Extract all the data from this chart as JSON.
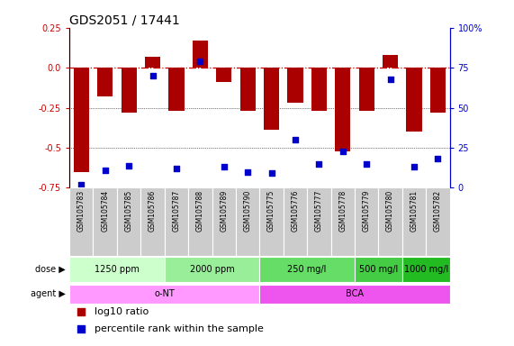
{
  "title": "GDS2051 / 17441",
  "samples": [
    "GSM105783",
    "GSM105784",
    "GSM105785",
    "GSM105786",
    "GSM105787",
    "GSM105788",
    "GSM105789",
    "GSM105790",
    "GSM105775",
    "GSM105776",
    "GSM105777",
    "GSM105778",
    "GSM105779",
    "GSM105780",
    "GSM105781",
    "GSM105782"
  ],
  "log10_ratio": [
    -0.65,
    -0.18,
    -0.28,
    0.07,
    -0.27,
    0.17,
    -0.09,
    -0.27,
    -0.39,
    -0.22,
    -0.27,
    -0.52,
    -0.27,
    0.08,
    -0.4,
    -0.28
  ],
  "percentile": [
    2,
    11,
    14,
    70,
    12,
    79,
    13,
    10,
    9,
    30,
    15,
    23,
    15,
    68,
    13,
    18
  ],
  "dose_groups": [
    {
      "label": "1250 ppm",
      "start": 0,
      "end": 4,
      "color": "#ccffcc"
    },
    {
      "label": "2000 ppm",
      "start": 4,
      "end": 8,
      "color": "#99ee99"
    },
    {
      "label": "250 mg/l",
      "start": 8,
      "end": 12,
      "color": "#66dd66"
    },
    {
      "label": "500 mg/l",
      "start": 12,
      "end": 14,
      "color": "#44cc44"
    },
    {
      "label": "1000 mg/l",
      "start": 14,
      "end": 16,
      "color": "#22bb22"
    }
  ],
  "agent_groups": [
    {
      "label": "o-NT",
      "start": 0,
      "end": 8,
      "color": "#ff99ff"
    },
    {
      "label": "BCA",
      "start": 8,
      "end": 16,
      "color": "#ee55ee"
    }
  ],
  "bar_color": "#aa0000",
  "dot_color": "#0000cc",
  "sample_bg_color": "#cccccc",
  "ref_line_color": "#cc0000",
  "background_color": "#ffffff",
  "ylim_left": [
    -0.75,
    0.25
  ],
  "ylim_right": [
    0,
    100
  ],
  "yticks_left": [
    -0.75,
    -0.5,
    -0.25,
    0.0,
    0.25
  ],
  "yticks_right": [
    0,
    25,
    50,
    75,
    100
  ],
  "title_fontsize": 10,
  "tick_fontsize": 7,
  "label_fontsize": 8,
  "sample_fontsize": 5.5
}
